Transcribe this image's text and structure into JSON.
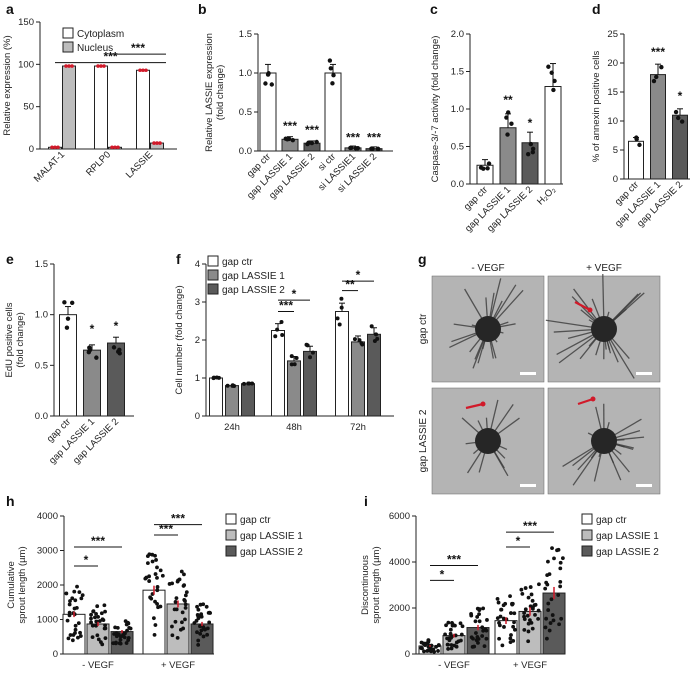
{
  "colors": {
    "white": "#ffffff",
    "light": "#bdbdbd",
    "mid": "#8a8a8a",
    "dark": "#5a5a5a",
    "dot": "#111111",
    "red": "#d11a2a"
  },
  "panels": {
    "a": "a",
    "b": "b",
    "c": "c",
    "d": "d",
    "e": "e",
    "f": "f",
    "g": "g",
    "h": "h",
    "i": "i"
  },
  "chart_data": [
    {
      "id": "a",
      "type": "bar",
      "ylabel": "Relative expression (%)",
      "ylim": [
        0,
        150
      ],
      "yticks": [
        0,
        50,
        100,
        150
      ],
      "categories": [
        "MALAT-1",
        "RPLP0",
        "LASSIE"
      ],
      "series": [
        {
          "name": "Cytoplasm",
          "values": [
            2,
            98,
            93
          ]
        },
        {
          "name": "Nucleus",
          "values": [
            98,
            2,
            7
          ]
        }
      ],
      "legend": [
        "Cytoplasm",
        "Nucleus"
      ],
      "annotations": [
        "***",
        "***"
      ]
    },
    {
      "id": "b",
      "type": "bar",
      "ylabel": "Relative LASSIE expression (fold change)",
      "ylim": [
        0,
        1.5
      ],
      "yticks": [
        "0.0",
        "0.5",
        "1.0",
        "1.5"
      ],
      "categories": [
        "gap ctr",
        "gap LASSIE 1",
        "gap LASSIE 2",
        "si ctr",
        "si LASSIE1",
        "si LASSIE 2"
      ],
      "values": [
        1.0,
        0.15,
        0.1,
        1.0,
        0.04,
        0.03
      ],
      "annotations": [
        "***",
        "***",
        "***",
        "***"
      ]
    },
    {
      "id": "c",
      "type": "bar",
      "ylabel": "Caspase-3/-7 activity (fold change)",
      "ylim": [
        0,
        2.0
      ],
      "yticks": [
        "0.0",
        "0.5",
        "1.0",
        "1.5",
        "2.0"
      ],
      "categories": [
        "gap ctr",
        "gap LASSIE 1",
        "gap LASSIE 2",
        "H₂O₂"
      ],
      "values": [
        0.25,
        0.75,
        0.55,
        1.3
      ],
      "annotations": [
        "**",
        "*"
      ]
    },
    {
      "id": "d",
      "type": "bar",
      "ylabel": "% of annexin positive cells",
      "ylim": [
        0,
        25
      ],
      "yticks": [
        0,
        5,
        10,
        15,
        20,
        25
      ],
      "categories": [
        "gap ctr",
        "gap LASSIE 1",
        "gap LASSIE 2"
      ],
      "values": [
        6.5,
        18,
        11
      ],
      "annotations": [
        "***",
        "*"
      ]
    },
    {
      "id": "e",
      "type": "bar",
      "ylabel": "EdU positive cells (fold change)",
      "ylim": [
        0,
        1.5
      ],
      "yticks": [
        "0.0",
        "0.5",
        "1.0",
        "1.5"
      ],
      "categories": [
        "gap ctr",
        "gap LASSIE 1",
        "gap LASSIE 2"
      ],
      "values": [
        1.0,
        0.65,
        0.72
      ],
      "annotations": [
        "*",
        "*"
      ]
    },
    {
      "id": "f",
      "type": "bar",
      "ylabel": "Cell number (fold change)",
      "ylim": [
        0,
        4
      ],
      "yticks": [
        0,
        1,
        2,
        3,
        4
      ],
      "categories": [
        "24h",
        "48h",
        "72h"
      ],
      "series": [
        {
          "name": "gap ctr",
          "values": [
            1.0,
            2.25,
            2.75
          ]
        },
        {
          "name": "gap LASSIE 1",
          "values": [
            0.8,
            1.45,
            1.95
          ]
        },
        {
          "name": "gap LASSIE 2",
          "values": [
            0.85,
            1.7,
            2.15
          ]
        }
      ],
      "legend": [
        "gap ctr",
        "gap LASSIE 1",
        "gap LASSIE 2"
      ],
      "annotations": [
        "***",
        "*",
        "**",
        "*"
      ]
    },
    {
      "id": "h",
      "type": "bar",
      "ylabel": "Cumulative sprout length (µm)",
      "ylim": [
        0,
        4000
      ],
      "yticks": [
        0,
        1000,
        2000,
        3000,
        4000
      ],
      "categories": [
        "- VEGF",
        "+ VEGF"
      ],
      "series": [
        {
          "name": "gap ctr",
          "values": [
            1150,
            1850
          ]
        },
        {
          "name": "gap LASSIE 1",
          "values": [
            870,
            1450
          ]
        },
        {
          "name": "gap LASSIE 2",
          "values": [
            650,
            870
          ]
        }
      ],
      "legend": [
        "gap ctr",
        "gap LASSIE 1",
        "gap LASSIE 2"
      ],
      "annotations": [
        "*",
        "***",
        "***",
        "***"
      ]
    },
    {
      "id": "i",
      "type": "bar",
      "ylabel": "Discontinuous sprout length (µm)",
      "ylim": [
        0,
        6000
      ],
      "yticks": [
        0,
        2000,
        4000,
        6000
      ],
      "categories": [
        "- VEGF",
        "+ VEGF"
      ],
      "series": [
        {
          "name": "gap ctr",
          "values": [
            350,
            1450
          ]
        },
        {
          "name": "gap LASSIE 1",
          "values": [
            800,
            1850
          ]
        },
        {
          "name": "gap LASSIE 2",
          "values": [
            1150,
            2650
          ]
        }
      ],
      "legend": [
        "gap ctr",
        "gap LASSIE 1",
        "gap LASSIE 2"
      ],
      "annotations": [
        "*",
        "***",
        "*",
        "***"
      ]
    }
  ],
  "micrograph": {
    "cols": [
      "- VEGF",
      "+ VEGF"
    ],
    "rows": [
      "gap ctr",
      "gap LASSIE 2"
    ]
  }
}
